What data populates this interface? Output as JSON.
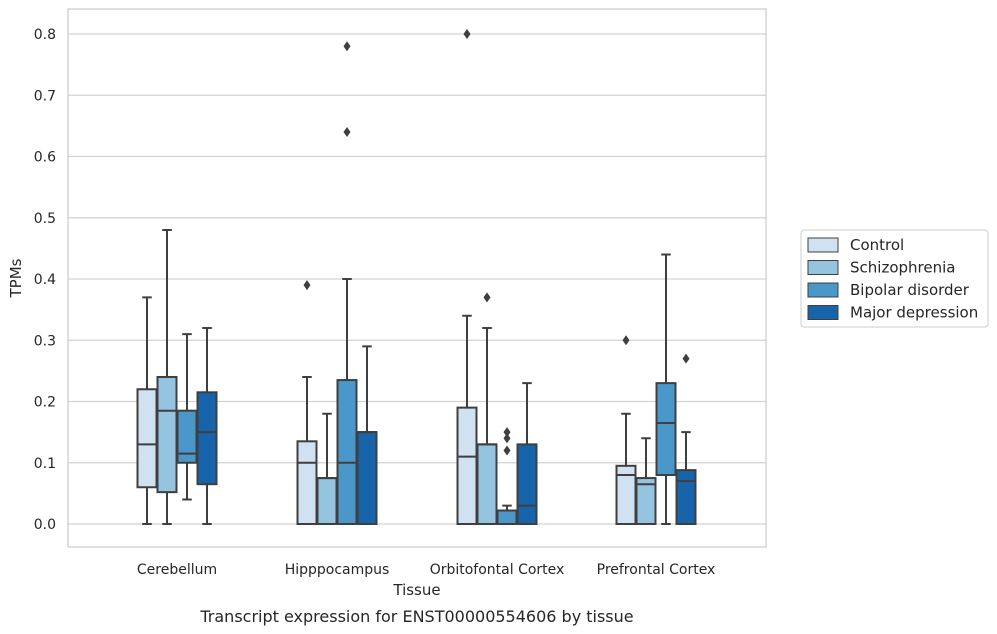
{
  "chart_data": {
    "type": "box",
    "xlabel": "Tissue",
    "ylabel": "TPMs",
    "caption": "Transcript expression for ENST00000554606 by tissue",
    "ylim": [
      -0.04,
      0.84
    ],
    "yticks": [
      "0.0",
      "0.1",
      "0.2",
      "0.3",
      "0.4",
      "0.5",
      "0.6",
      "0.7",
      "0.8"
    ],
    "ytick_values": [
      0,
      0.1,
      0.2,
      0.3,
      0.4,
      0.5,
      0.6,
      0.7,
      0.8
    ],
    "grid": "horizontal",
    "legend_position": "outside-right",
    "categories": [
      "Cerebellum",
      "Hipppocampus",
      "Orbitofontal Cortex",
      "Prefrontal Cortex"
    ],
    "series": [
      {
        "name": "Control",
        "color": "#d0e1f2",
        "boxes": [
          {
            "whislo": 0.0,
            "q1": 0.06,
            "med": 0.13,
            "q3": 0.22,
            "whishi": 0.37,
            "fliers": []
          },
          {
            "whislo": 0.0,
            "q1": 0.0,
            "med": 0.1,
            "q3": 0.135,
            "whishi": 0.24,
            "fliers": [
              0.39
            ]
          },
          {
            "whislo": 0.0,
            "q1": 0.0,
            "med": 0.11,
            "q3": 0.19,
            "whishi": 0.34,
            "fliers": [
              0.8
            ]
          },
          {
            "whislo": 0.0,
            "q1": 0.0,
            "med": 0.08,
            "q3": 0.095,
            "whishi": 0.18,
            "fliers": [
              0.3
            ]
          }
        ]
      },
      {
        "name": "Schizophrenia",
        "color": "#94c4df",
        "boxes": [
          {
            "whislo": 0.0,
            "q1": 0.052,
            "med": 0.185,
            "q3": 0.24,
            "whishi": 0.48,
            "fliers": []
          },
          {
            "whislo": 0.0,
            "q1": 0.0,
            "med": 0.075,
            "q3": 0.075,
            "whishi": 0.18,
            "fliers": []
          },
          {
            "whislo": 0.0,
            "q1": 0.0,
            "med": 0.13,
            "q3": 0.13,
            "whishi": 0.32,
            "fliers": [
              0.37
            ]
          },
          {
            "whislo": 0.0,
            "q1": 0.0,
            "med": 0.065,
            "q3": 0.075,
            "whishi": 0.14,
            "fliers": []
          }
        ]
      },
      {
        "name": "Bipolar disorder",
        "color": "#4a98c9",
        "boxes": [
          {
            "whislo": 0.04,
            "q1": 0.1,
            "med": 0.115,
            "q3": 0.185,
            "whishi": 0.31,
            "fliers": []
          },
          {
            "whislo": 0.0,
            "q1": 0.0,
            "med": 0.1,
            "q3": 0.235,
            "whishi": 0.4,
            "fliers": [
              0.64,
              0.78
            ]
          },
          {
            "whislo": 0.0,
            "q1": 0.0,
            "med": 0.022,
            "q3": 0.022,
            "whishi": 0.03,
            "fliers": [
              0.12,
              0.14,
              0.15
            ]
          },
          {
            "whislo": 0.0,
            "q1": 0.08,
            "med": 0.165,
            "q3": 0.23,
            "whishi": 0.44,
            "fliers": []
          }
        ]
      },
      {
        "name": "Major depression",
        "color": "#1764ab",
        "boxes": [
          {
            "whislo": 0.0,
            "q1": 0.065,
            "med": 0.15,
            "q3": 0.215,
            "whishi": 0.32,
            "fliers": []
          },
          {
            "whislo": 0.0,
            "q1": 0.0,
            "med": 0.15,
            "q3": 0.15,
            "whishi": 0.29,
            "fliers": []
          },
          {
            "whislo": 0.0,
            "q1": 0.0,
            "med": 0.03,
            "q3": 0.13,
            "whishi": 0.23,
            "fliers": []
          },
          {
            "whislo": 0.0,
            "q1": 0.0,
            "med": 0.07,
            "q3": 0.088,
            "whishi": 0.15,
            "fliers": [
              0.27
            ]
          }
        ]
      }
    ]
  }
}
